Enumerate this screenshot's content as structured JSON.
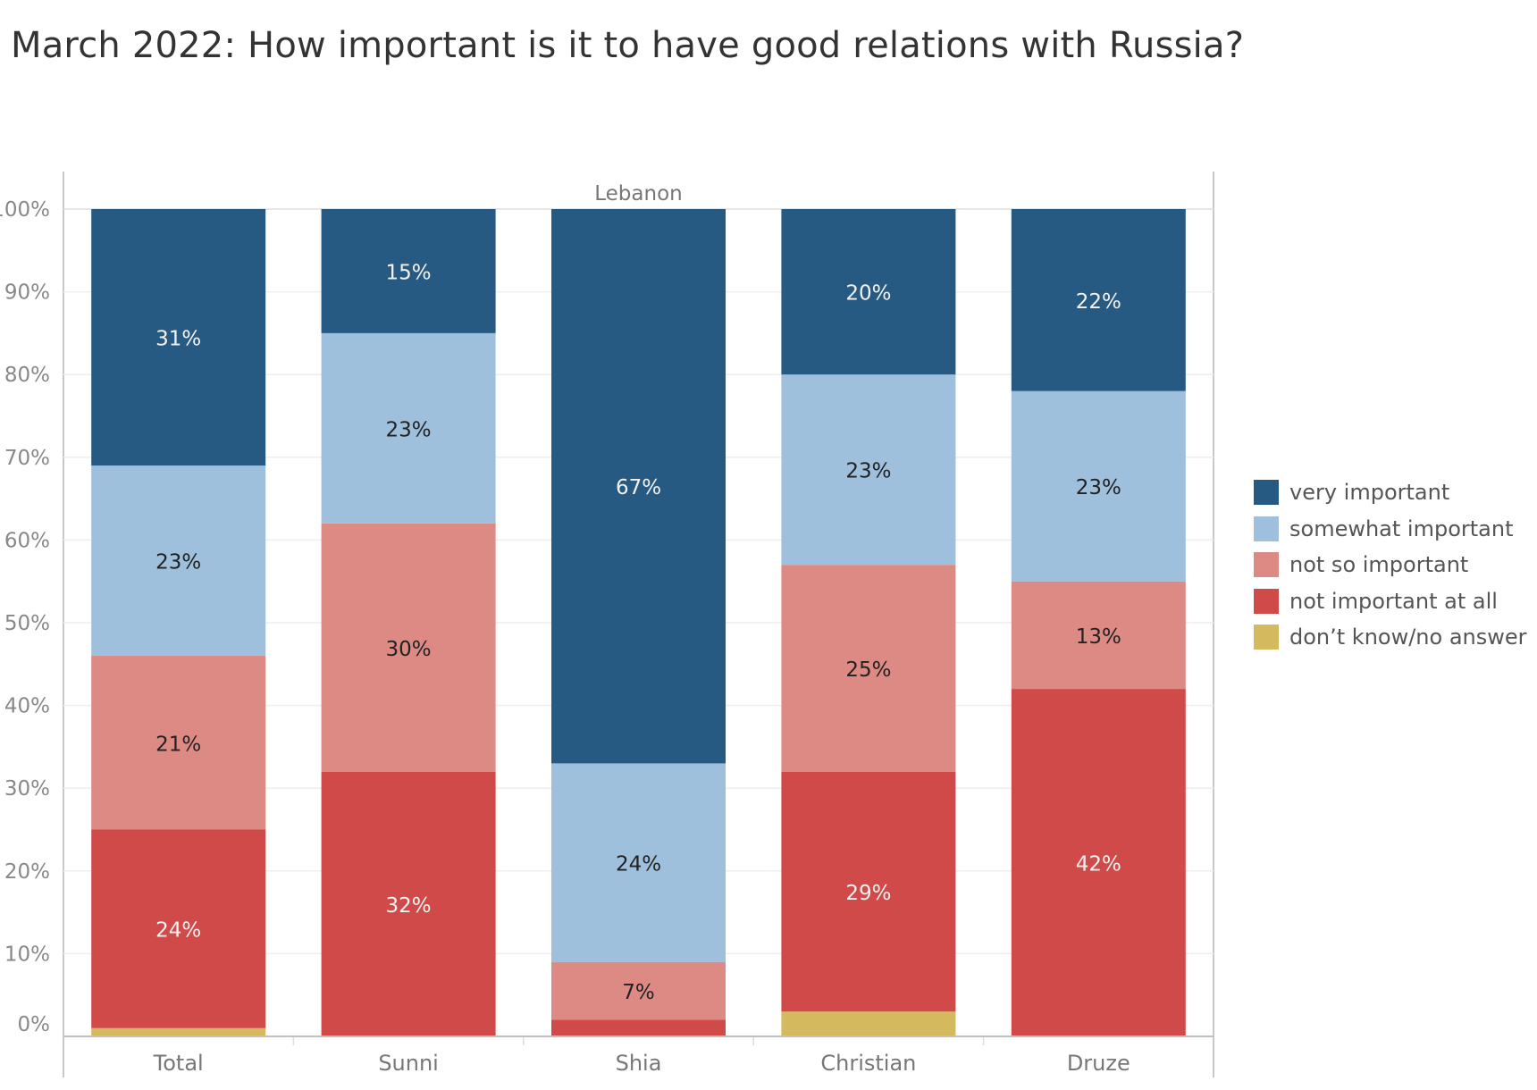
{
  "title": "March 2022: How important is it to have good relations with Russia?",
  "chart_data": {
    "type": "bar",
    "stacked": true,
    "title": "March 2022: How important is it to have good relations with Russia?",
    "panel_label": "Lebanon",
    "categories": [
      "Total",
      "Sunni",
      "Shia",
      "Christian",
      "Druze"
    ],
    "ylim": [
      0,
      100
    ],
    "y_ticks": [
      "0%",
      "10%",
      "20%",
      "30%",
      "40%",
      "50%",
      "60%",
      "70%",
      "80%",
      "90%",
      "100%"
    ],
    "grid": true,
    "legend_position": "right",
    "series": [
      {
        "name": "don’t know/no answer",
        "color": "#d4b95e",
        "values": [
          1,
          0,
          0,
          3,
          0
        ],
        "labels": [
          "",
          "",
          "",
          "",
          ""
        ]
      },
      {
        "name": "not important at all",
        "color": "#d04a4a",
        "values": [
          24,
          32,
          2,
          29,
          42
        ],
        "labels": [
          "24%",
          "32%",
          "",
          "29%",
          "42%"
        ]
      },
      {
        "name": "not so important",
        "color": "#dd8a85",
        "values": [
          21,
          30,
          7,
          25,
          13
        ],
        "labels": [
          "21%",
          "30%",
          "7%",
          "25%",
          "13%"
        ]
      },
      {
        "name": "somewhat important",
        "color": "#9fc0dc",
        "values": [
          23,
          23,
          24,
          23,
          23
        ],
        "labels": [
          "23%",
          "23%",
          "24%",
          "23%",
          "23%"
        ]
      },
      {
        "name": "very important",
        "color": "#265a82",
        "values": [
          31,
          15,
          67,
          20,
          22
        ],
        "labels": [
          "31%",
          "15%",
          "67%",
          "20%",
          "22%"
        ]
      }
    ],
    "legend_order": [
      "very important",
      "somewhat important",
      "not so important",
      "not important at all",
      "don’t know/no answer"
    ]
  }
}
